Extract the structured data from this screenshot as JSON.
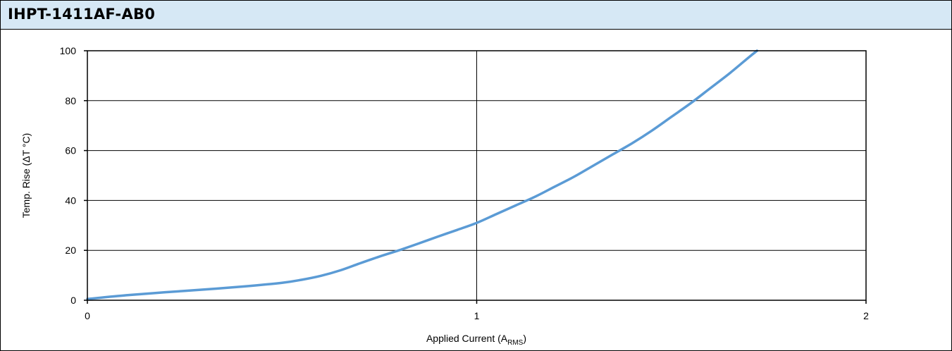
{
  "header": {
    "title": "IHPT-1411AF-AB0"
  },
  "chart_data": {
    "type": "line",
    "title": "IHPT-1411AF-AB0",
    "xlabel": {
      "main": "Applied Current (A",
      "sub": "RMS",
      "close": ")"
    },
    "ylabel": "Temp. Rise (ΔT °C)",
    "xlim": [
      0,
      2
    ],
    "ylim": [
      0,
      100
    ],
    "x_ticks": [
      "0",
      "1",
      "2"
    ],
    "y_ticks": [
      "0",
      "20",
      "40",
      "60",
      "80",
      "100"
    ],
    "grid": {
      "horizontal": true,
      "vertical": true
    },
    "series": [
      {
        "color": "#5b9bd5",
        "x": [
          0,
          0.1,
          0.2,
          0.3,
          0.4,
          0.5,
          0.55,
          0.6,
          0.65,
          0.7,
          0.75,
          0.8,
          0.85,
          0.9,
          0.95,
          1.0,
          1.05,
          1.1,
          1.15,
          1.2,
          1.25,
          1.3,
          1.35,
          1.4,
          1.45,
          1.5,
          1.55,
          1.6,
          1.65,
          1.7,
          1.72
        ],
        "y": [
          0.5,
          2.0,
          3.2,
          4.3,
          5.5,
          7.0,
          8.2,
          9.8,
          12.0,
          14.8,
          17.5,
          20.0,
          22.7,
          25.5,
          28.2,
          31.0,
          34.5,
          38.0,
          41.5,
          45.5,
          49.5,
          54.0,
          58.5,
          63.0,
          68.0,
          73.5,
          79.0,
          85.0,
          91.0,
          97.5,
          100
        ]
      }
    ]
  }
}
